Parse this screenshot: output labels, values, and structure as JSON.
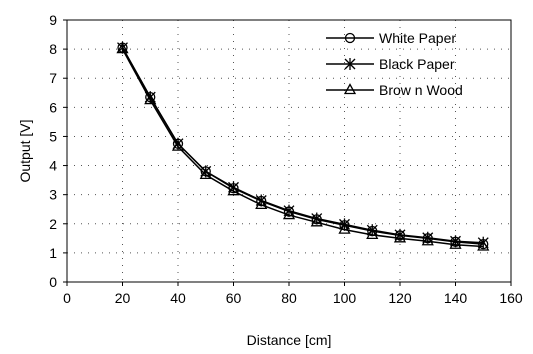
{
  "chart_data": {
    "type": "line",
    "xlabel": "Distance [cm]",
    "ylabel": "Output [V]",
    "xlim": [
      0,
      160
    ],
    "ylim": [
      0,
      9
    ],
    "xticks": [
      0,
      20,
      40,
      60,
      80,
      100,
      120,
      140,
      160
    ],
    "yticks": [
      0,
      1,
      2,
      3,
      4,
      5,
      6,
      7,
      8,
      9
    ],
    "grid": "dotted",
    "legend_position": "top-right",
    "x": [
      20,
      30,
      40,
      50,
      60,
      70,
      80,
      90,
      100,
      110,
      120,
      130,
      140,
      150
    ],
    "series": [
      {
        "name": "White Paper",
        "marker": "circle",
        "values": [
          8.05,
          6.35,
          4.75,
          3.8,
          3.22,
          2.78,
          2.42,
          2.15,
          1.95,
          1.75,
          1.6,
          1.5,
          1.38,
          1.3
        ]
      },
      {
        "name": "Black Paper",
        "marker": "star",
        "values": [
          8.05,
          6.35,
          4.75,
          3.8,
          3.25,
          2.8,
          2.45,
          2.18,
          1.98,
          1.78,
          1.62,
          1.52,
          1.4,
          1.35
        ]
      },
      {
        "name": "Brow n Wood",
        "marker": "triangle",
        "values": [
          8.0,
          6.25,
          4.65,
          3.68,
          3.12,
          2.65,
          2.3,
          2.05,
          1.8,
          1.62,
          1.5,
          1.4,
          1.28,
          1.22
        ]
      }
    ]
  }
}
